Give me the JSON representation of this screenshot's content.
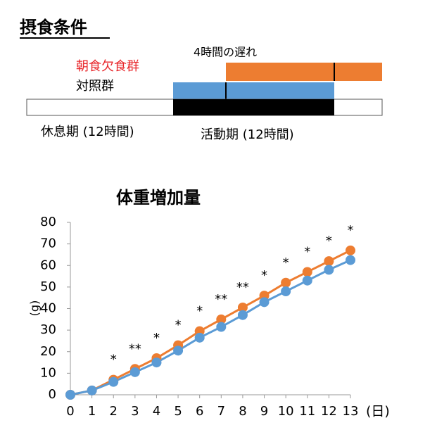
{
  "diagram": {
    "title": "摂食条件",
    "delay_label": "4時間の遅れ",
    "rest_label": "休息期 (12時間)",
    "active_label": "活動期 (12時間)"
  },
  "chart_data": {
    "type": "line",
    "title": "体重増加量",
    "y_label": "(g)",
    "x_unit": "(日)",
    "x": [
      0,
      1,
      2,
      3,
      4,
      5,
      6,
      7,
      8,
      9,
      10,
      11,
      12,
      13
    ],
    "series": [
      {
        "name": "朝食欠食群",
        "color": "#ed7d31",
        "values": [
          0,
          2,
          7,
          12,
          17,
          23,
          29.5,
          35,
          40.5,
          46,
          52,
          57,
          62,
          67
        ]
      },
      {
        "name": "対照群",
        "color": "#5b9bd5",
        "values": [
          0,
          2,
          6,
          10.5,
          15,
          20.5,
          26.5,
          31.5,
          37,
          43,
          48,
          53,
          58,
          62.5
        ]
      }
    ],
    "annotations": [
      {
        "x": 2,
        "text": "*"
      },
      {
        "x": 3,
        "text": "**"
      },
      {
        "x": 4,
        "text": "*"
      },
      {
        "x": 5,
        "text": "*"
      },
      {
        "x": 6,
        "text": "*"
      },
      {
        "x": 7,
        "text": "**"
      },
      {
        "x": 8,
        "text": "**"
      },
      {
        "x": 9,
        "text": "*"
      },
      {
        "x": 10,
        "text": "*"
      },
      {
        "x": 11,
        "text": "*"
      },
      {
        "x": 12,
        "text": "*"
      },
      {
        "x": 13,
        "text": "*"
      }
    ],
    "xlim": [
      0,
      13
    ],
    "xticks": [
      0,
      1,
      2,
      3,
      4,
      5,
      6,
      7,
      8,
      9,
      10,
      11,
      12,
      13
    ],
    "ylim": [
      0,
      80
    ],
    "yticks": [
      0,
      10,
      20,
      30,
      40,
      50,
      60,
      70,
      80
    ]
  }
}
